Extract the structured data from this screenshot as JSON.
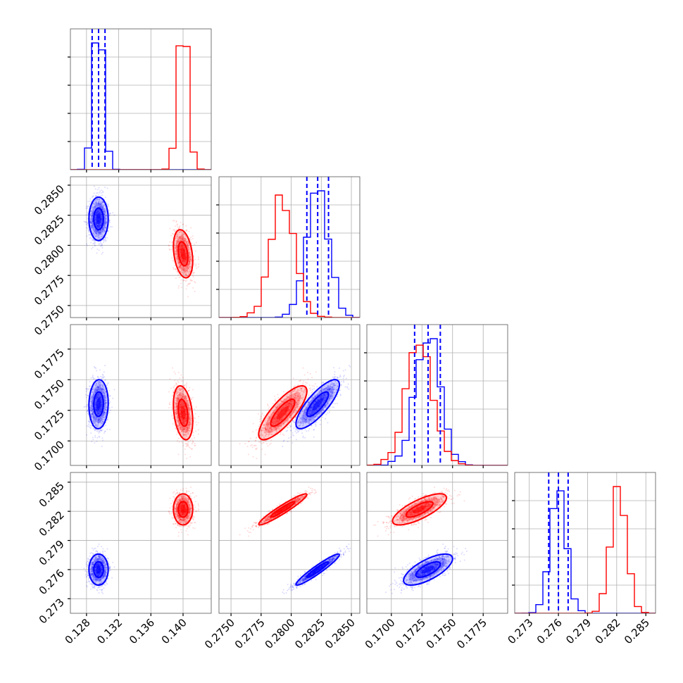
{
  "chart_data": {
    "type": "scatter",
    "title": "",
    "grid": true,
    "colors": {
      "series_a": "#0000ff",
      "series_b": "#ff0000"
    },
    "parameters": [
      {
        "range": [
          0.126,
          0.1435
        ],
        "ticks": [
          0.128,
          0.132,
          0.136,
          0.14
        ],
        "tick_labels": [
          "0.128",
          "0.132",
          "0.136",
          "0.140"
        ]
      },
      {
        "range": [
          0.274,
          0.2857
        ],
        "ticks": [
          0.275,
          0.2775,
          0.28,
          0.2825,
          0.285
        ],
        "tick_labels": [
          "0.2750",
          "0.2775",
          "0.2800",
          "0.2825",
          "0.2850"
        ]
      },
      {
        "range": [
          0.168,
          0.1795
        ],
        "ticks": [
          0.17,
          0.1725,
          0.175,
          0.1775
        ],
        "tick_labels": [
          "0.1700",
          "0.1725",
          "0.1750",
          "0.1775"
        ]
      },
      {
        "range": [
          0.2715,
          0.286
        ],
        "ticks": [
          0.273,
          0.276,
          0.279,
          0.282,
          0.285
        ],
        "tick_labels": [
          "0.273",
          "0.276",
          "0.279",
          "0.282",
          "0.285"
        ]
      }
    ],
    "series": [
      {
        "color": "#0000ff",
        "means": [
          0.1295,
          0.2822,
          0.173,
          0.276
        ],
        "stds": [
          0.0006,
          0.0009,
          0.001,
          0.0008
        ],
        "corr": [
          [
            1,
            0,
            0.05,
            0
          ],
          [
            0,
            1,
            0.8,
            0.95
          ],
          [
            0.05,
            0.8,
            1,
            0.7
          ],
          [
            0,
            0.95,
            0.7,
            1
          ]
        ],
        "quantiles": [
          [
            0.1287,
            0.1295,
            0.1303
          ],
          [
            0.2813,
            0.2822,
            0.2831
          ],
          [
            0.1719,
            0.173,
            0.174
          ],
          [
            0.275,
            0.276,
            0.277
          ]
        ]
      },
      {
        "color": "#ff0000",
        "means": [
          0.14,
          0.2793,
          0.1723,
          0.2822
        ],
        "stds": [
          0.0006,
          0.001,
          0.0011,
          0.0008
        ],
        "corr": [
          [
            1,
            -0.3,
            -0.3,
            0
          ],
          [
            -0.3,
            1,
            0.8,
            0.95
          ],
          [
            -0.3,
            0.8,
            1,
            0.75
          ],
          [
            0,
            0.95,
            0.75,
            1
          ]
        ],
        "quantiles": null
      }
    ]
  }
}
